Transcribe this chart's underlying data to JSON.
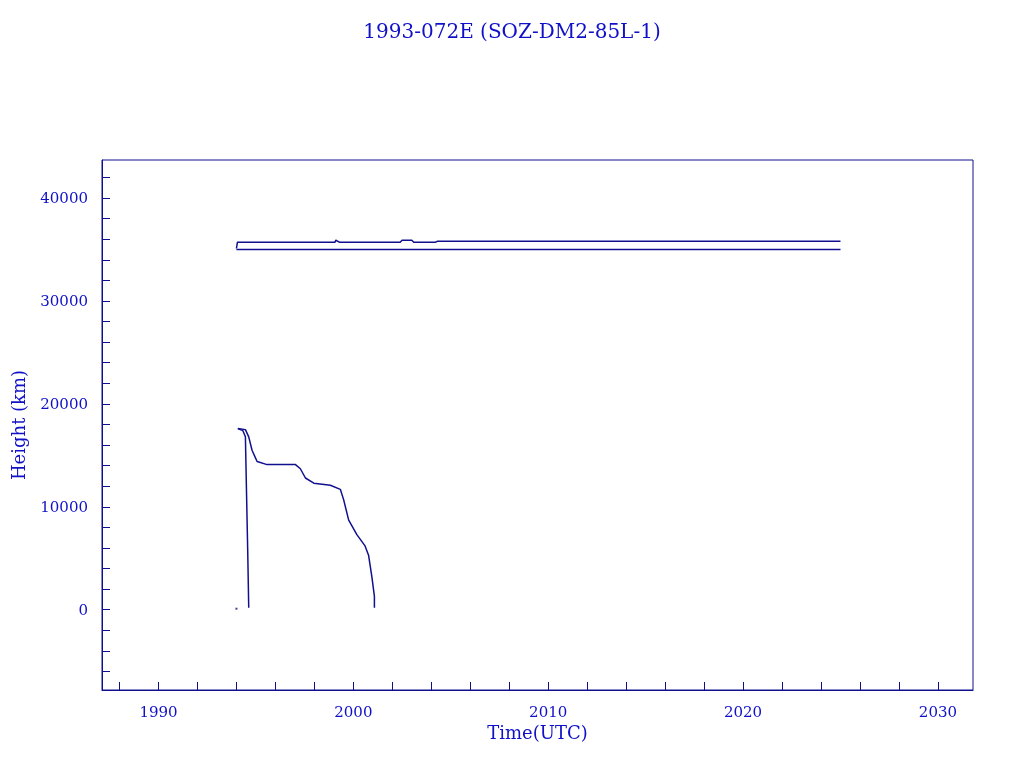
{
  "chart_data": {
    "type": "line",
    "title": "1993-072E (SOZ-DM2-85L-1)",
    "xlabel": "Time(UTC)",
    "ylabel": "Height (km)",
    "xlim": [
      1987.1,
      2031.8
    ],
    "ylim": [
      -7800,
      43700
    ],
    "xticks": [
      {
        "value": 1988,
        "label": null
      },
      1990,
      {
        "value": 1992,
        "label": null
      },
      {
        "value": 1994,
        "label": null
      },
      {
        "value": 1996,
        "label": null
      },
      {
        "value": 1998,
        "label": null
      },
      2000,
      {
        "value": 2002,
        "label": null
      },
      {
        "value": 2004,
        "label": null
      },
      {
        "value": 2006,
        "label": null
      },
      {
        "value": 2008,
        "label": null
      },
      2010,
      {
        "value": 2012,
        "label": null
      },
      {
        "value": 2014,
        "label": null
      },
      {
        "value": 2016,
        "label": null
      },
      {
        "value": 2018,
        "label": null
      },
      2020,
      {
        "value": 2022,
        "label": null
      },
      {
        "value": 2024,
        "label": null
      },
      {
        "value": 2026,
        "label": null
      },
      {
        "value": 2028,
        "label": null
      },
      2030
    ],
    "yticks": [
      {
        "value": -6000,
        "label": null
      },
      {
        "value": -4000,
        "label": null
      },
      {
        "value": -2000,
        "label": null
      },
      0,
      {
        "value": 2000,
        "label": null
      },
      {
        "value": 4000,
        "label": null
      },
      {
        "value": 6000,
        "label": null
      },
      {
        "value": 8000,
        "label": null
      },
      10000,
      {
        "value": 12000,
        "label": null
      },
      {
        "value": 14000,
        "label": null
      },
      {
        "value": 16000,
        "label": null
      },
      {
        "value": 18000,
        "label": null
      },
      20000,
      {
        "value": 22000,
        "label": null
      },
      {
        "value": 24000,
        "label": null
      },
      {
        "value": 26000,
        "label": null
      },
      {
        "value": 28000,
        "label": null
      },
      30000,
      {
        "value": 32000,
        "label": null
      },
      {
        "value": 34000,
        "label": null
      },
      {
        "value": 36000,
        "label": null
      },
      {
        "value": 38000,
        "label": null
      },
      40000,
      {
        "value": 42000,
        "label": null
      }
    ],
    "grid": false,
    "marker": "none",
    "line_style": "solid",
    "series": [
      {
        "color": "#10108f",
        "x": [
          1994.0,
          1994.05,
          1999.05,
          1999.1,
          1999.3,
          2002.4,
          2002.5,
          2003.0,
          2003.1,
          2004.2,
          2004.3,
          2025.0
        ],
        "values": [
          35100,
          35700,
          35700,
          35900,
          35700,
          35700,
          35900,
          35900,
          35700,
          35700,
          35800,
          35800
        ]
      },
      {
        "color": "#10108f",
        "x": [
          1994.0,
          2025.0
        ],
        "values": [
          35000,
          35000
        ]
      },
      {
        "color": "#10108f",
        "x": [
          1994.07,
          1994.46,
          1994.63,
          1994.8,
          1995.06,
          1995.57,
          1997.03,
          1997.28,
          1997.54,
          1997.97,
          1998.82,
          1999.33,
          1999.5,
          1999.76,
          2000.18,
          2000.6,
          2000.78,
          2000.95,
          2001.08,
          2001.08
        ],
        "values": [
          17600,
          17500,
          16800,
          15500,
          14400,
          14100,
          14100,
          13700,
          12800,
          12300,
          12100,
          11700,
          10700,
          8700,
          7300,
          6200,
          5300,
          3200,
          1300,
          200
        ]
      },
      {
        "color": "#10108f",
        "x": [
          1994.07,
          1994.33,
          1994.46,
          1994.51,
          1994.58,
          1994.63
        ],
        "values": [
          17600,
          17400,
          16800,
          12000,
          5500,
          200
        ]
      },
      {
        "type": "scatter",
        "marker": "square",
        "color": "#10108f",
        "x": [
          1994.0
        ],
        "values": [
          100
        ]
      }
    ]
  }
}
